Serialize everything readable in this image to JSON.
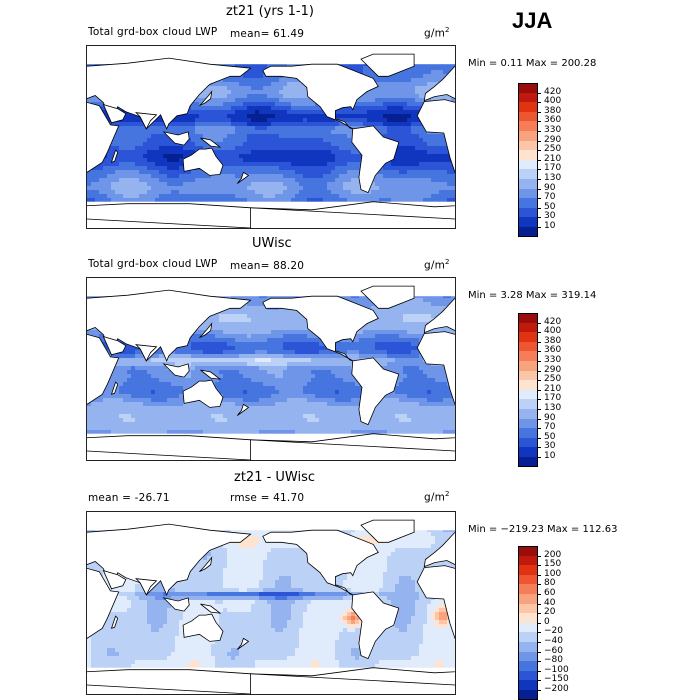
{
  "season": "JJA",
  "panels": [
    {
      "title": "zt21 (yrs 1-1)",
      "subtitle": "Total grd-box cloud LWP",
      "mean_text": "mean=  61.49",
      "units": "g/m",
      "units_exp": "2",
      "minmax": "Min =    0.11 Max = 200.28",
      "colorbar": {
        "levels": [
          "420",
          "400",
          "380",
          "360",
          "330",
          "290",
          "250",
          "210",
          "170",
          "130",
          "90",
          "70",
          "50",
          "30",
          "10"
        ],
        "colors": [
          "#9b0d0d",
          "#c01a0f",
          "#df3312",
          "#ee5632",
          "#f57d58",
          "#f9a27e",
          "#fcc5a8",
          "#fde3d0",
          "#e0ecfb",
          "#bcd1f6",
          "#95b4ef",
          "#6f95e8",
          "#4775df",
          "#2b55d6",
          "#1035bf",
          "#061f91"
        ]
      },
      "field": "lwp_model"
    },
    {
      "title": "UWisc",
      "subtitle": "Total grd-box cloud LWP",
      "mean_text": "mean=  88.20",
      "units": "g/m",
      "units_exp": "2",
      "minmax": "Min =    3.28 Max = 319.14",
      "colorbar": {
        "levels": [
          "420",
          "400",
          "380",
          "360",
          "330",
          "290",
          "250",
          "210",
          "170",
          "130",
          "90",
          "70",
          "50",
          "30",
          "10"
        ],
        "colors": [
          "#9b0d0d",
          "#c01a0f",
          "#df3312",
          "#ee5632",
          "#f57d58",
          "#f9a27e",
          "#fcc5a8",
          "#fde3d0",
          "#e0ecfb",
          "#bcd1f6",
          "#95b4ef",
          "#6f95e8",
          "#4775df",
          "#2b55d6",
          "#1035bf",
          "#061f91"
        ]
      },
      "field": "lwp_obs"
    },
    {
      "title": "zt21 - UWisc",
      "subtitle": "mean = -26.71",
      "mean_text": "rmse =  41.70",
      "units": "g/m",
      "units_exp": "2",
      "minmax": "Min = −219.23 Max = 112.63",
      "colorbar": {
        "levels": [
          "200",
          "150",
          "100",
          "80",
          "60",
          "40",
          "20",
          "0",
          "−20",
          "−40",
          "−60",
          "−80",
          "−100",
          "−150",
          "−200"
        ],
        "colors": [
          "#9b0d0d",
          "#c01a0f",
          "#df3312",
          "#ee5632",
          "#f57d58",
          "#f9a27e",
          "#fcc5a8",
          "#fde3d0",
          "#e0ecfb",
          "#bcd1f6",
          "#95b4ef",
          "#6f95e8",
          "#4775df",
          "#2b55d6",
          "#1035bf",
          "#061f91"
        ]
      },
      "field": "lwp_diff"
    }
  ],
  "chart_data": [
    {
      "type": "heatmap",
      "title": "zt21 (yrs 1-1)",
      "subtitle": "Total grd-box cloud LWP",
      "mean": 61.49,
      "min": 0.11,
      "max": 200.28,
      "units": "g/m2",
      "x_range": [
        0,
        360
      ],
      "y_range": [
        -90,
        90
      ],
      "levels": [
        10,
        30,
        50,
        70,
        90,
        130,
        170,
        210,
        250,
        290,
        330,
        360,
        380,
        400,
        420
      ]
    },
    {
      "type": "heatmap",
      "title": "UWisc",
      "subtitle": "Total grd-box cloud LWP",
      "mean": 88.2,
      "min": 3.28,
      "max": 319.14,
      "units": "g/m2",
      "x_range": [
        0,
        360
      ],
      "y_range": [
        -90,
        90
      ],
      "levels": [
        10,
        30,
        50,
        70,
        90,
        130,
        170,
        210,
        250,
        290,
        330,
        360,
        380,
        400,
        420
      ]
    },
    {
      "type": "heatmap",
      "title": "zt21 - UWisc",
      "mean": -26.71,
      "rmse": 41.7,
      "min": -219.23,
      "max": 112.63,
      "units": "g/m2",
      "x_range": [
        0,
        360
      ],
      "y_range": [
        -90,
        90
      ],
      "levels": [
        -200,
        -150,
        -100,
        -80,
        -60,
        -40,
        -20,
        0,
        20,
        40,
        60,
        80,
        100,
        150,
        200
      ]
    }
  ]
}
